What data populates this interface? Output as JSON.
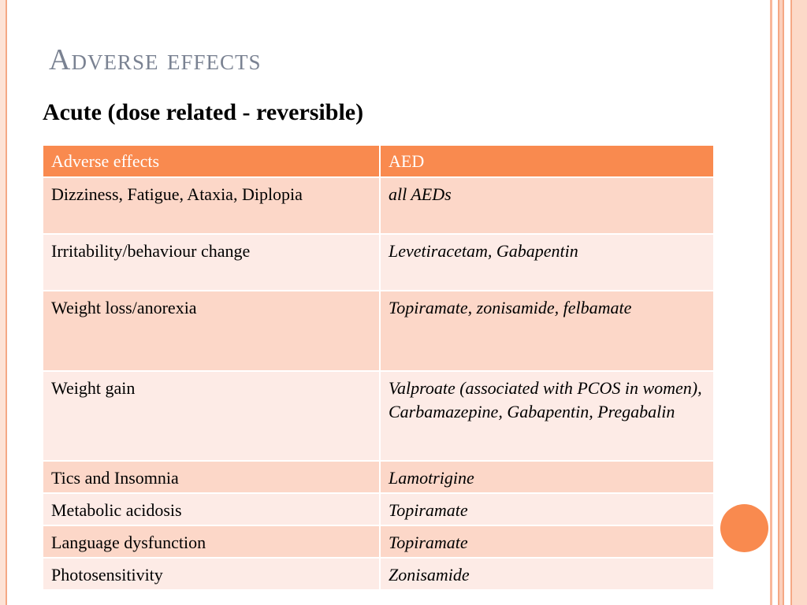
{
  "slide": {
    "title": "Adverse effects",
    "subtitle": "Acute (dose related - reversible)"
  },
  "table": {
    "headers": [
      "Adverse effects",
      "AED"
    ],
    "rows": [
      {
        "effect": "Dizziness, Fatigue, Ataxia, Diplopia",
        "aed": "all AEDs"
      },
      {
        "effect": "Irritability/behaviour change",
        "aed": "Levetiracetam, Gabapentin"
      },
      {
        "effect": "Weight loss/anorexia",
        "aed": "Topiramate, zonisamide, felbamate"
      },
      {
        "effect": "Weight gain",
        "aed": "Valproate (associated with PCOS in women), Carbamazepine, Gabapentin, Pregabalin"
      },
      {
        "effect": "Tics and Insomnia",
        "aed": "Lamotrigine"
      },
      {
        "effect": "Metabolic acidosis",
        "aed": "Topiramate"
      },
      {
        "effect": "Language dysfunction",
        "aed": "Topiramate"
      },
      {
        "effect": "Photosensitivity",
        "aed": "Zonisamide"
      }
    ]
  },
  "colors": {
    "accent": "#f98a4f",
    "row_dark": "#fcd7c8",
    "row_light": "#fdebe6",
    "title": "#7a8292"
  }
}
